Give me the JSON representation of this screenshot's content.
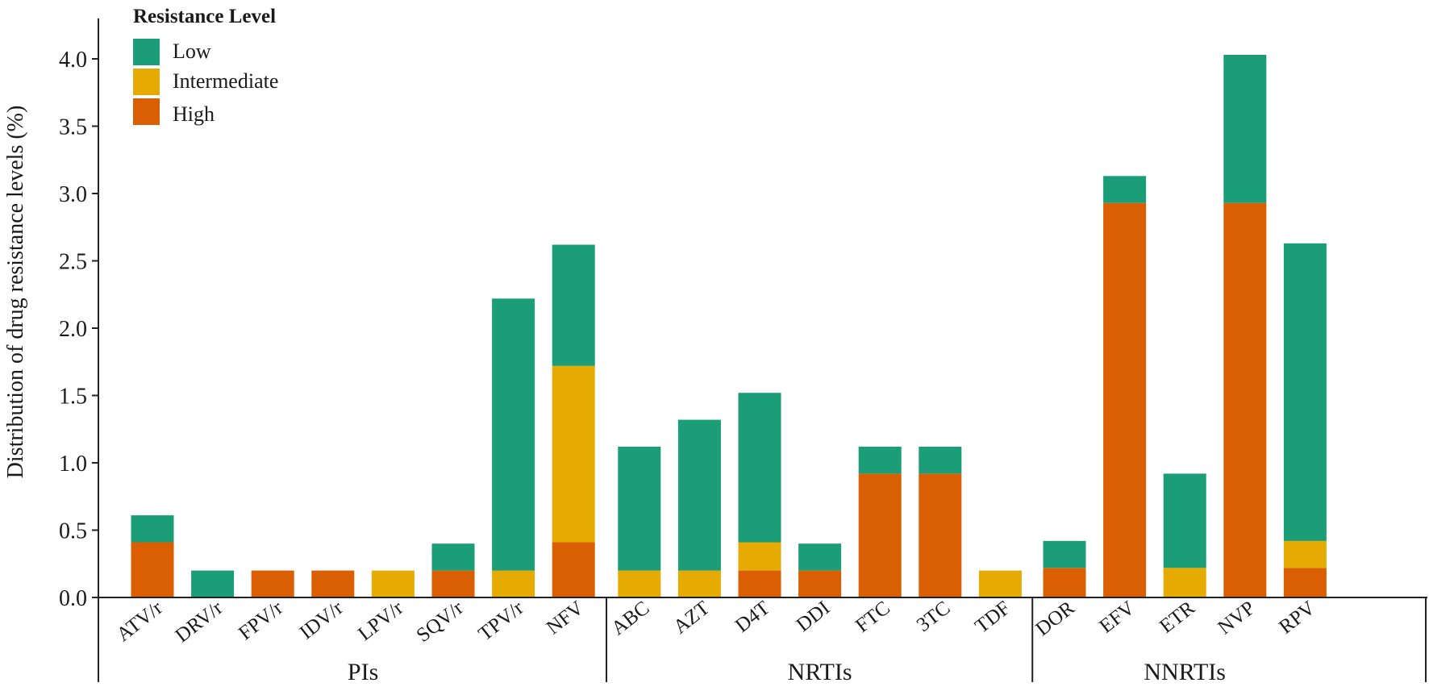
{
  "chart_data": {
    "type": "bar",
    "stacked": true,
    "ylabel": "Distribution of drug resistance levels (%)",
    "ylim": [
      0,
      4.3
    ],
    "yticks": [
      "0.0",
      "0.5",
      "1.0",
      "1.5",
      "2.0",
      "2.5",
      "3.0",
      "3.5",
      "4.0"
    ],
    "grid": false,
    "legend": {
      "title": "Resistance Level",
      "position": "top-left",
      "entries": [
        "Low",
        "Intermediate",
        "High"
      ]
    },
    "groups": [
      {
        "name": "PIs",
        "categories": [
          "ATV/r",
          "DRV/r",
          "FPV/r",
          "IDV/r",
          "LPV/r",
          "SQV/r",
          "TPV/r",
          "NFV"
        ]
      },
      {
        "name": "NRTIs",
        "categories": [
          "ABC",
          "AZT",
          "D4T",
          "DDI",
          "FTC",
          "3TC",
          "TDF"
        ]
      },
      {
        "name": "NNRTIs",
        "categories": [
          "DOR",
          "EFV",
          "ETR",
          "NVP",
          "RPV"
        ]
      }
    ],
    "categories": [
      "ATV/r",
      "DRV/r",
      "FPV/r",
      "IDV/r",
      "LPV/r",
      "SQV/r",
      "TPV/r",
      "NFV",
      "ABC",
      "AZT",
      "D4T",
      "DDI",
      "FTC",
      "3TC",
      "TDF",
      "DOR",
      "EFV",
      "ETR",
      "NVP",
      "RPV"
    ],
    "series": [
      {
        "name": "High",
        "color": "#d95f02",
        "values": [
          0.41,
          0,
          0.2,
          0.2,
          0,
          0.2,
          0,
          0.41,
          0,
          0,
          0.2,
          0.2,
          0.92,
          0.92,
          0,
          0.22,
          2.93,
          0,
          2.93,
          0.22
        ]
      },
      {
        "name": "Intermediate",
        "color": "#e6ab02",
        "values": [
          0,
          0,
          0,
          0,
          0.2,
          0,
          0.2,
          1.31,
          0.2,
          0.2,
          0.21,
          0,
          0,
          0,
          0.2,
          0,
          0,
          0.22,
          0,
          0.2
        ]
      },
      {
        "name": "Low",
        "color": "#1b9e77",
        "values": [
          0.2,
          0.2,
          0,
          0,
          0,
          0.2,
          2.02,
          0.9,
          0.92,
          1.12,
          1.11,
          0.2,
          0.2,
          0.2,
          0,
          0.2,
          0.2,
          0.7,
          1.1,
          2.21
        ]
      }
    ]
  }
}
